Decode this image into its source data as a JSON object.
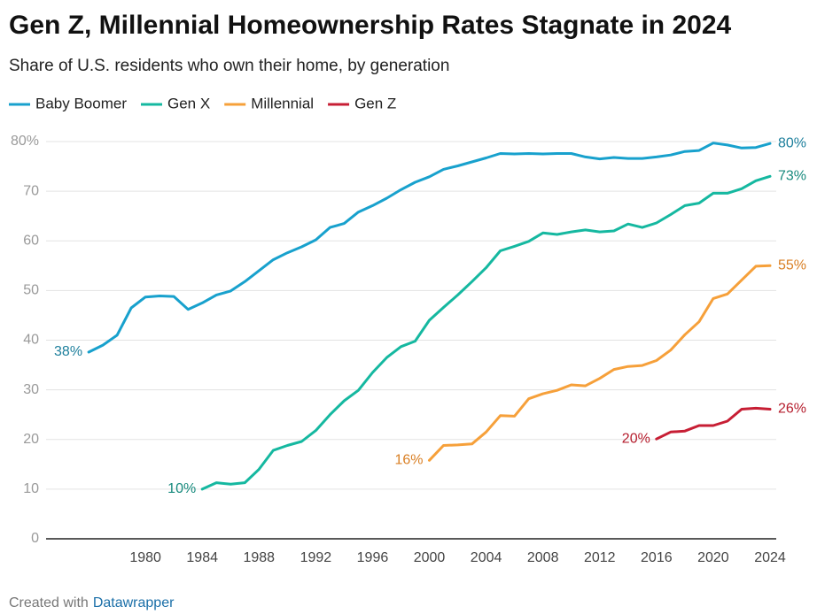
{
  "chart_data": {
    "type": "line",
    "title": "Gen Z, Millennial Homeownership Rates Stagnate in 2024",
    "subtitle": "Share of U.S. residents who own their home, by generation",
    "x": [
      1976,
      1977,
      1978,
      1979,
      1980,
      1981,
      1982,
      1983,
      1984,
      1985,
      1986,
      1987,
      1988,
      1989,
      1990,
      1991,
      1992,
      1993,
      1994,
      1995,
      1996,
      1997,
      1998,
      1999,
      2000,
      2001,
      2002,
      2003,
      2004,
      2005,
      2006,
      2007,
      2008,
      2009,
      2010,
      2011,
      2012,
      2013,
      2014,
      2015,
      2016,
      2017,
      2018,
      2019,
      2020,
      2021,
      2022,
      2023,
      2024
    ],
    "series": [
      {
        "name": "Baby Boomer",
        "color": "#18a1cd",
        "label_color": "#1d7f9c",
        "values": [
          37.6,
          39,
          41,
          46.5,
          48.7,
          48.9,
          48.8,
          46.2,
          47.5,
          49.1,
          49.9,
          51.8,
          54,
          56.2,
          57.6,
          58.8,
          60.2,
          62.7,
          63.5,
          65.8,
          67.1,
          68.6,
          70.3,
          71.8,
          72.9,
          74.4,
          75.1,
          75.9,
          76.7,
          77.6,
          77.5,
          77.6,
          77.5,
          77.6,
          77.6,
          76.9,
          76.5,
          76.8,
          76.6,
          76.6,
          76.9,
          77.3,
          78,
          78.2,
          79.7,
          79.3,
          78.7,
          78.8,
          79.6
        ],
        "value_labels": [
          "38%",
          null,
          null,
          null,
          null,
          null,
          null,
          null,
          null,
          null,
          null,
          null,
          null,
          null,
          null,
          null,
          null,
          null,
          null,
          null,
          null,
          null,
          null,
          null,
          null,
          null,
          null,
          null,
          null,
          null,
          null,
          null,
          null,
          null,
          null,
          null,
          null,
          null,
          null,
          null,
          null,
          null,
          null,
          null,
          null,
          null,
          null,
          null,
          "80%"
        ]
      },
      {
        "name": "Gen X",
        "color": "#15b8a0",
        "label_color": "#178a7d",
        "values": [
          null,
          null,
          null,
          null,
          null,
          null,
          null,
          null,
          10,
          11.3,
          11,
          11.3,
          14,
          17.8,
          18.8,
          19.6,
          21.8,
          25,
          27.8,
          29.9,
          33.5,
          36.5,
          38.7,
          39.8,
          44,
          46.6,
          49.1,
          51.8,
          54.6,
          58,
          58.9,
          59.9,
          61.6,
          61.3,
          61.8,
          62.2,
          61.8,
          62,
          63.4,
          62.7,
          63.6,
          65.3,
          67.1,
          67.6,
          69.6,
          69.6,
          70.5,
          72.1,
          73
        ],
        "value_labels": [
          null,
          null,
          null,
          null,
          null,
          null,
          null,
          null,
          "10%",
          null,
          null,
          null,
          null,
          null,
          null,
          null,
          null,
          null,
          null,
          null,
          null,
          null,
          null,
          null,
          null,
          null,
          null,
          null,
          null,
          null,
          null,
          null,
          null,
          null,
          null,
          null,
          null,
          null,
          null,
          null,
          null,
          null,
          null,
          null,
          null,
          null,
          null,
          null,
          "73%"
        ]
      },
      {
        "name": "Millennial",
        "color": "#f6a03a",
        "label_color": "#d97f24",
        "values": [
          null,
          null,
          null,
          null,
          null,
          null,
          null,
          null,
          null,
          null,
          null,
          null,
          null,
          null,
          null,
          null,
          null,
          null,
          null,
          null,
          null,
          null,
          null,
          null,
          15.8,
          18.8,
          18.9,
          19.1,
          21.5,
          24.8,
          24.7,
          28.2,
          29.2,
          29.9,
          31,
          30.8,
          32.3,
          34.1,
          34.7,
          34.9,
          35.9,
          38,
          41.1,
          43.7,
          48.4,
          49.3,
          52.1,
          54.9,
          55
        ],
        "value_labels": [
          null,
          null,
          null,
          null,
          null,
          null,
          null,
          null,
          null,
          null,
          null,
          null,
          null,
          null,
          null,
          null,
          null,
          null,
          null,
          null,
          null,
          null,
          null,
          null,
          "16%",
          null,
          null,
          null,
          null,
          null,
          null,
          null,
          null,
          null,
          null,
          null,
          null,
          null,
          null,
          null,
          null,
          null,
          null,
          null,
          null,
          null,
          null,
          null,
          "55%"
        ]
      },
      {
        "name": "Gen Z",
        "color": "#c71e34",
        "label_color": "#b51d2d",
        "values": [
          null,
          null,
          null,
          null,
          null,
          null,
          null,
          null,
          null,
          null,
          null,
          null,
          null,
          null,
          null,
          null,
          null,
          null,
          null,
          null,
          null,
          null,
          null,
          null,
          null,
          null,
          null,
          null,
          null,
          null,
          null,
          null,
          null,
          null,
          null,
          null,
          null,
          null,
          null,
          null,
          20.1,
          21.5,
          21.7,
          22.8,
          22.8,
          23.7,
          26.1,
          26.3,
          26.1
        ],
        "value_labels": [
          null,
          null,
          null,
          null,
          null,
          null,
          null,
          null,
          null,
          null,
          null,
          null,
          null,
          null,
          null,
          null,
          null,
          null,
          null,
          null,
          null,
          null,
          null,
          null,
          null,
          null,
          null,
          null,
          null,
          null,
          null,
          null,
          null,
          null,
          null,
          null,
          null,
          null,
          null,
          null,
          "20%",
          null,
          null,
          null,
          null,
          null,
          null,
          null,
          "26%"
        ]
      }
    ],
    "xlim": [
      1973,
      2024
    ],
    "xticks": [
      1980,
      1984,
      1988,
      1992,
      1996,
      2000,
      2004,
      2008,
      2012,
      2016,
      2020,
      2024
    ],
    "ylim": [
      0,
      80
    ],
    "yticks": [
      0,
      10,
      20,
      30,
      40,
      50,
      60,
      70,
      {
        "value": 80,
        "label": "80%"
      }
    ],
    "grid": true,
    "legend": "top-left"
  },
  "footer": {
    "prefix": "Created with",
    "link": "Datawrapper"
  }
}
